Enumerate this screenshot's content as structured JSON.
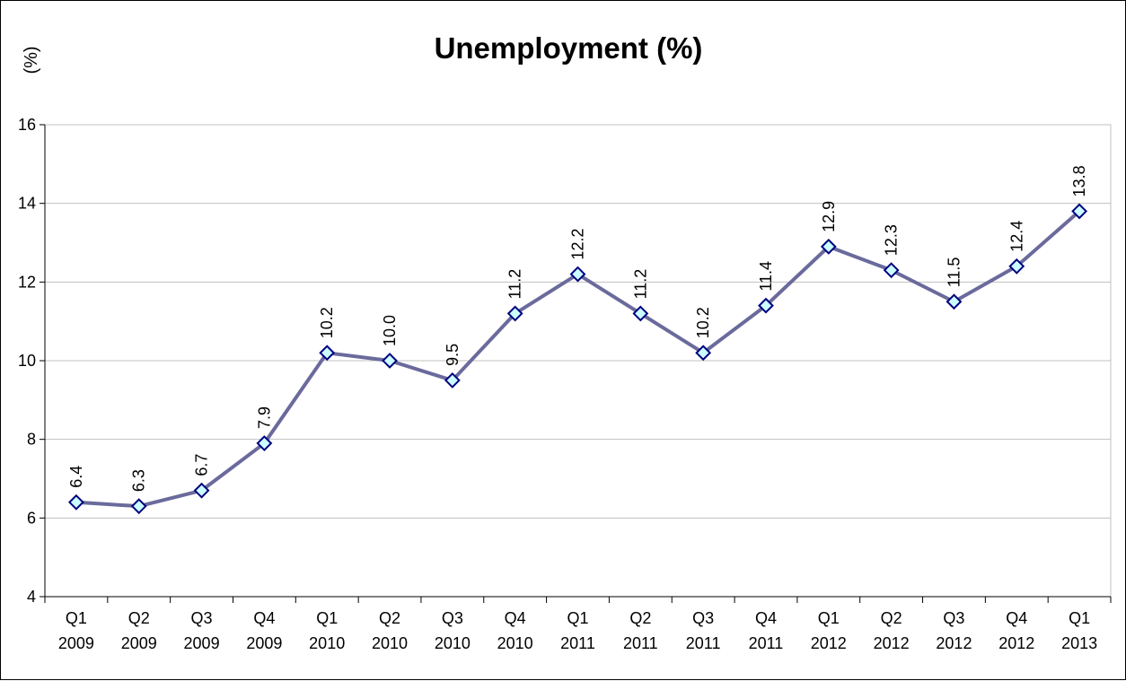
{
  "chart_data": {
    "type": "line",
    "title": "Unemployment (%)",
    "ylabel": "(%)",
    "xlabel": "",
    "categories": [
      [
        "Q1",
        "2009"
      ],
      [
        "Q2",
        "2009"
      ],
      [
        "Q3",
        "2009"
      ],
      [
        "Q4",
        "2009"
      ],
      [
        "Q1",
        "2010"
      ],
      [
        "Q2",
        "2010"
      ],
      [
        "Q3",
        "2010"
      ],
      [
        "Q4",
        "2010"
      ],
      [
        "Q1",
        "2011"
      ],
      [
        "Q2",
        "2011"
      ],
      [
        "Q3",
        "2011"
      ],
      [
        "Q4",
        "2011"
      ],
      [
        "Q1",
        "2012"
      ],
      [
        "Q2",
        "2012"
      ],
      [
        "Q3",
        "2012"
      ],
      [
        "Q4",
        "2012"
      ],
      [
        "Q1",
        "2013"
      ]
    ],
    "series": [
      {
        "values": [
          6.4,
          6.3,
          6.7,
          7.9,
          10.2,
          10.0,
          9.5,
          11.2,
          12.2,
          11.2,
          10.2,
          11.4,
          12.9,
          12.3,
          11.5,
          12.4,
          13.8
        ],
        "data_labels": [
          "6.4",
          "6.3",
          "6.7",
          "7.9",
          "10.2",
          "10.0",
          "9.5",
          "11.2",
          "12.2",
          "11.2",
          "10.2",
          "11.4",
          "12.9",
          "12.3",
          "11.5",
          "12.4",
          "13.8"
        ],
        "line_color": "#6a6a9c",
        "marker": "diamond",
        "marker_fill": "#ccffff",
        "marker_edge": "#000080"
      }
    ],
    "ylim": [
      4,
      16
    ],
    "yticks": [
      4,
      6,
      8,
      10,
      12,
      14,
      16
    ],
    "grid": true,
    "gridline_color": "#c0c0c0",
    "legend": "none",
    "data_label_orientation": "vertical"
  }
}
